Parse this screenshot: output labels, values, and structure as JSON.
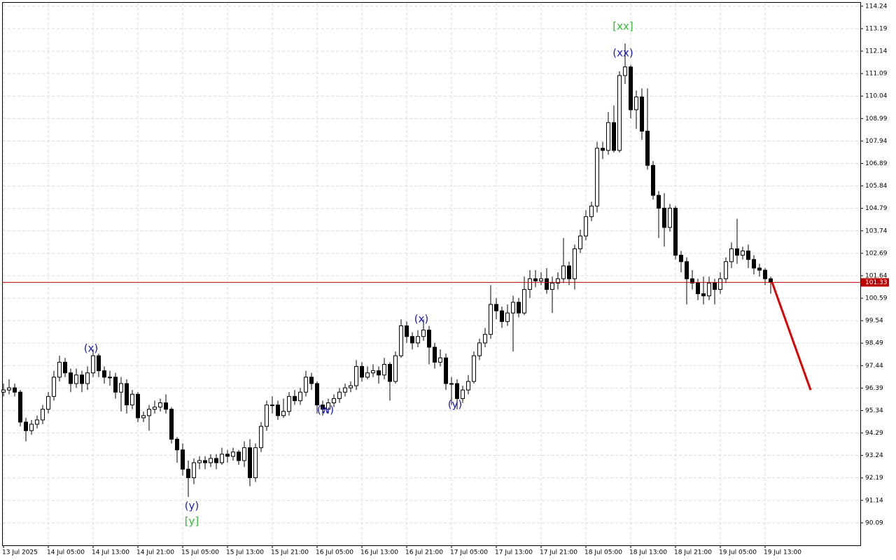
{
  "chart_data": {
    "type": "candlestick",
    "categories": [
      "13 Jul 2025",
      null,
      null,
      null,
      null,
      null,
      null,
      null,
      "14 Jul 05:00",
      null,
      null,
      null,
      null,
      null,
      null,
      null,
      "14 Jul 13:00",
      null,
      null,
      null,
      null,
      null,
      null,
      null,
      "14 Jul 21:00",
      null,
      null,
      null,
      null,
      null,
      null,
      null,
      "15 Jul 05:00",
      null,
      null,
      null,
      null,
      null,
      null,
      null,
      "15 Jul 13:00",
      null,
      null,
      null,
      null,
      null,
      null,
      null,
      "15 Jul 21:00",
      null,
      null,
      null,
      null,
      null,
      null,
      null,
      "16 Jul 05:00",
      null,
      null,
      null,
      null,
      null,
      null,
      null,
      "16 Jul 13:00",
      null,
      null,
      null,
      null,
      null,
      null,
      null,
      "16 Jul 21:00",
      null,
      null,
      null,
      null,
      null,
      null,
      null,
      "17 Jul 05:00",
      null,
      null,
      null,
      null,
      null,
      null,
      null,
      "17 Jul 13:00",
      null,
      null,
      null,
      null,
      null,
      null,
      null,
      "17 Jul 21:00",
      null,
      null,
      null,
      null,
      null,
      null,
      null,
      "18 Jul 05:00",
      null,
      null,
      null,
      null,
      null,
      null,
      null,
      "18 Jul 13:00",
      null,
      null,
      null,
      null,
      null,
      null,
      null,
      "18 Jul 21:00",
      null,
      null,
      null,
      null,
      null,
      null,
      null,
      "19 Jul 05:00",
      null,
      null,
      null,
      null,
      null,
      null,
      null,
      "19 Jul 13:00",
      null
    ],
    "open": [
      96.2,
      96.3,
      96.4,
      96.2,
      94.8,
      94.4,
      94.7,
      94.9,
      95.4,
      96.0,
      96.9,
      97.6,
      97.1,
      96.6,
      97.0,
      96.6,
      97.1,
      97.9,
      97.2,
      96.9,
      96.9,
      96.2,
      96.6,
      95.6,
      96.1,
      95.0,
      95.1,
      95.4,
      95.5,
      95.7,
      95.4,
      94.0,
      93.5,
      92.6,
      92.2,
      92.9,
      93.0,
      92.9,
      93.1,
      92.9,
      93.3,
      93.2,
      93.4,
      93.0,
      93.6,
      92.2,
      93.6,
      94.6,
      95.6,
      95.6,
      95.1,
      95.3,
      96.0,
      95.8,
      96.2,
      96.9,
      96.6,
      95.6,
      95.4,
      95.7,
      95.9,
      96.2,
      96.4,
      96.5,
      97.4,
      96.9,
      97.1,
      97.2,
      97.0,
      97.5,
      96.7,
      97.9,
      99.3,
      98.8,
      98.5,
      98.8,
      99.1,
      98.3,
      97.6,
      97.8,
      96.6,
      96.6,
      95.9,
      96.3,
      96.7,
      97.9,
      98.5,
      98.9,
      100.3,
      100.0,
      99.5,
      99.9,
      100.4,
      99.9,
      101.0,
      101.5,
      101.4,
      101.5,
      101.0,
      101.3,
      101.5,
      102.1,
      101.5,
      102.9,
      103.5,
      104.4,
      104.9,
      107.6,
      107.5,
      108.8,
      107.5,
      111.0,
      111.4,
      109.4,
      110.0,
      108.4,
      106.8,
      105.4,
      104.8,
      103.9,
      104.8,
      102.6,
      102.3,
      101.5,
      101.3,
      100.8,
      100.7,
      101.3,
      101.0,
      101.5,
      102.3,
      102.9,
      102.6,
      102.8,
      102.4,
      102.0,
      101.9,
      101.5
    ],
    "high": [
      96.6,
      96.8,
      96.6,
      96.3,
      95.0,
      94.9,
      95.1,
      95.6,
      96.2,
      97.2,
      97.9,
      97.8,
      97.3,
      97.3,
      97.2,
      97.4,
      98.2,
      98.0,
      97.4,
      97.2,
      97.1,
      96.9,
      96.8,
      96.3,
      96.2,
      95.3,
      95.6,
      95.8,
      95.9,
      96.1,
      95.5,
      94.1,
      93.8,
      93.0,
      93.1,
      93.2,
      93.2,
      93.3,
      93.3,
      93.6,
      93.5,
      93.6,
      93.5,
      93.9,
      94.0,
      93.8,
      94.8,
      95.8,
      96.0,
      95.8,
      95.9,
      96.2,
      96.3,
      96.4,
      97.2,
      97.1,
      96.7,
      95.8,
      95.9,
      96.1,
      96.4,
      96.6,
      96.7,
      97.7,
      97.6,
      97.4,
      97.5,
      97.4,
      97.8,
      97.6,
      98.1,
      99.6,
      99.5,
      99.0,
      99.1,
      99.6,
      99.3,
      98.5,
      98.2,
      98.0,
      96.9,
      96.8,
      96.5,
      97.0,
      98.1,
      98.7,
      99.2,
      101.2,
      100.6,
      100.2,
      100.3,
      100.7,
      100.6,
      101.6,
      101.9,
      101.9,
      101.8,
      102.0,
      101.6,
      101.8,
      103.4,
      102.3,
      103.1,
      103.8,
      104.7,
      105.1,
      107.9,
      107.9,
      109.3,
      109.6,
      111.2,
      112.5,
      111.5,
      110.3,
      110.4,
      110.4,
      107.0,
      105.6,
      105.5,
      105.0,
      104.9,
      102.8,
      102.5,
      101.9,
      101.5,
      101.6,
      101.6,
      101.5,
      101.8,
      102.5,
      103.2,
      104.3,
      103.0,
      103.1,
      102.6,
      102.2,
      102.0,
      101.6
    ],
    "low": [
      96.0,
      96.1,
      96.0,
      94.6,
      93.9,
      94.2,
      94.5,
      94.7,
      95.2,
      95.8,
      96.7,
      96.9,
      96.2,
      96.4,
      96.2,
      96.3,
      96.9,
      96.9,
      96.6,
      96.5,
      95.9,
      95.3,
      95.2,
      95.4,
      94.8,
      94.8,
      94.4,
      95.2,
      95.3,
      95.2,
      93.8,
      92.9,
      92.3,
      91.3,
      91.9,
      92.6,
      92.6,
      92.7,
      92.6,
      92.8,
      92.9,
      93.0,
      92.8,
      92.7,
      91.8,
      92.0,
      93.4,
      94.4,
      95.2,
      94.9,
      95.0,
      95.1,
      95.6,
      95.6,
      96.0,
      96.3,
      95.2,
      95.1,
      95.2,
      95.5,
      95.7,
      96.0,
      96.2,
      96.3,
      96.7,
      96.8,
      96.9,
      96.6,
      96.8,
      95.8,
      96.6,
      97.8,
      98.5,
      98.2,
      98.3,
      98.6,
      97.5,
      97.3,
      97.4,
      96.3,
      95.6,
      95.4,
      95.7,
      96.1,
      96.6,
      97.7,
      98.3,
      98.7,
      99.6,
      99.2,
      99.3,
      98.1,
      99.7,
      99.8,
      100.6,
      101.1,
      101.2,
      100.8,
      99.9,
      101.0,
      101.3,
      101.2,
      101.0,
      102.7,
      103.3,
      104.2,
      104.6,
      107.1,
      107.3,
      107.4,
      107.4,
      110.6,
      109.0,
      108.5,
      108.0,
      106.6,
      105.2,
      103.4,
      103.0,
      103.7,
      102.4,
      101.8,
      100.3,
      101.0,
      100.5,
      100.3,
      100.5,
      100.3,
      100.8,
      101.3,
      102.0,
      102.2,
      102.4,
      102.0,
      101.7,
      101.6,
      101.2,
      100.8
    ],
    "close": [
      96.3,
      96.4,
      96.2,
      94.8,
      94.4,
      94.7,
      94.9,
      95.4,
      96.0,
      96.9,
      97.6,
      97.1,
      96.6,
      97.0,
      96.6,
      97.1,
      97.9,
      97.2,
      96.9,
      96.9,
      96.2,
      96.6,
      95.6,
      96.1,
      95.0,
      95.1,
      95.4,
      95.5,
      95.7,
      95.4,
      94.0,
      93.5,
      92.6,
      92.2,
      92.9,
      93.0,
      92.9,
      93.1,
      92.9,
      93.3,
      93.2,
      93.4,
      93.0,
      93.6,
      92.2,
      93.6,
      94.6,
      95.6,
      95.6,
      95.1,
      95.3,
      96.0,
      95.8,
      96.2,
      96.9,
      96.6,
      95.6,
      95.4,
      95.7,
      95.9,
      96.2,
      96.4,
      96.5,
      97.4,
      96.9,
      97.1,
      97.2,
      97.0,
      97.5,
      96.7,
      97.9,
      99.3,
      98.8,
      98.5,
      98.8,
      99.1,
      98.3,
      97.6,
      97.8,
      96.6,
      96.6,
      95.9,
      96.3,
      96.7,
      97.9,
      98.5,
      98.9,
      100.3,
      100.0,
      99.5,
      99.9,
      100.4,
      99.9,
      101.0,
      101.5,
      101.4,
      101.5,
      101.0,
      101.3,
      101.5,
      102.1,
      101.5,
      102.9,
      103.5,
      104.4,
      104.9,
      107.6,
      107.5,
      108.8,
      107.5,
      111.0,
      111.4,
      109.4,
      110.0,
      108.4,
      106.8,
      105.4,
      104.8,
      103.9,
      104.8,
      102.6,
      102.3,
      101.5,
      101.3,
      100.8,
      100.7,
      101.3,
      101.0,
      101.5,
      102.3,
      102.9,
      102.6,
      102.8,
      102.4,
      102.0,
      101.9,
      101.5,
      101.33
    ],
    "up_color": "#ffffff",
    "down_color": "#000000",
    "outline_color": "#000000",
    "ylim": [
      89.04,
      114.4
    ],
    "yticks": [
      114.24,
      113.19,
      112.14,
      111.09,
      110.04,
      108.99,
      107.94,
      106.89,
      105.84,
      104.79,
      103.74,
      102.69,
      101.64,
      100.59,
      99.54,
      98.49,
      97.44,
      96.39,
      95.34,
      94.29,
      93.24,
      92.19,
      91.14,
      90.09
    ],
    "grid": true,
    "current_price": 101.33,
    "current_price_color": "#c00000",
    "forecast_target": 96.3,
    "forecast_color": "#e00000",
    "annotations": [
      {
        "text": "(x)",
        "color": "#1a1acc"
      },
      {
        "text": "(y)",
        "color": "#1a1acc"
      },
      {
        "text": "[y]",
        "color": "#33bb33"
      },
      {
        "text": "(w)",
        "color": "#1a1acc"
      },
      {
        "text": "(x)",
        "color": "#1a1acc"
      },
      {
        "text": "(y)",
        "color": "#1a1acc"
      },
      {
        "text": "(xx)",
        "color": "#1a1acc"
      },
      {
        "text": "[xx]",
        "color": "#33bb33"
      }
    ]
  }
}
